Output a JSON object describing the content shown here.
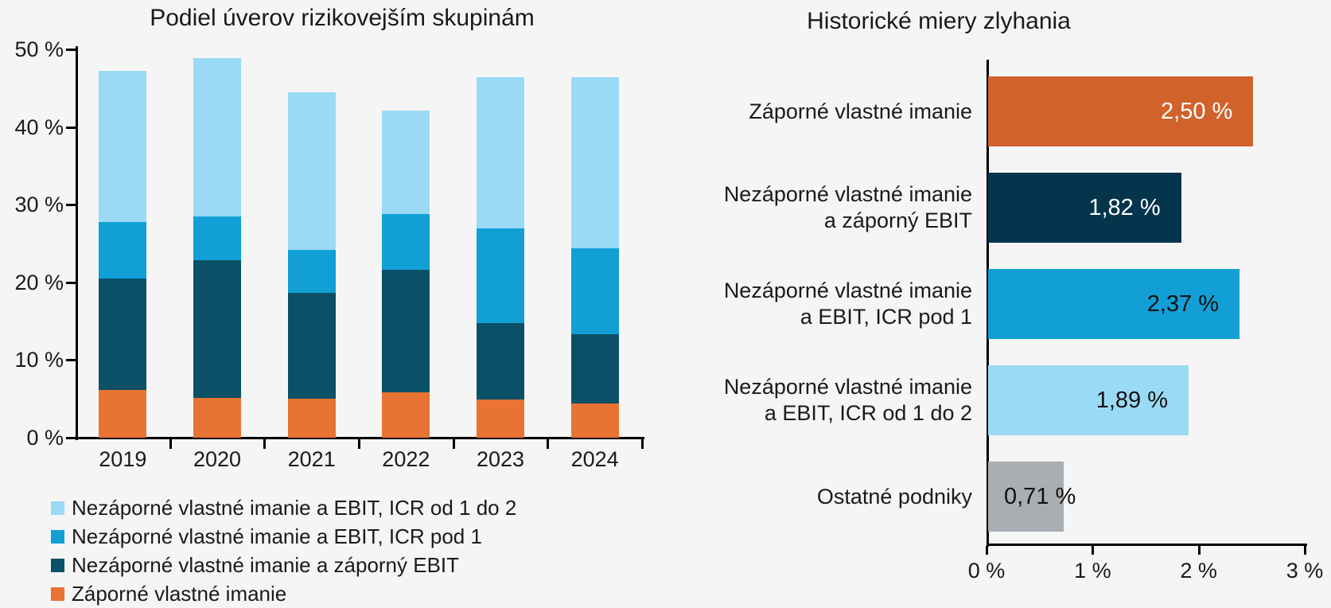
{
  "background": "#F5F5F6",
  "chart_data": [
    {
      "type": "bar",
      "stacked": true,
      "title": "Podiel úverov rizikovejším skupinám",
      "categories": [
        "2019",
        "2020",
        "2021",
        "2022",
        "2023",
        "2024"
      ],
      "series": [
        {
          "name": "Záporné vlastné imanie",
          "color": "#E87332",
          "values": [
            6.1,
            5.1,
            5.0,
            5.8,
            4.9,
            4.4
          ]
        },
        {
          "name": "Nezáporné vlastné imanie a záporný EBIT",
          "color": "#0A5067",
          "values": [
            14.4,
            17.7,
            13.6,
            15.8,
            9.9,
            8.9
          ]
        },
        {
          "name": "Nezáporné vlastné imanie a EBIT, ICR pod 1",
          "color": "#129FD6",
          "values": [
            7.3,
            5.7,
            5.6,
            7.2,
            12.1,
            11.1
          ]
        },
        {
          "name": "Nezáporné vlastné imanie a EBIT, ICR od 1 do 2",
          "color": "#9BDAF5",
          "values": [
            19.4,
            20.4,
            20.3,
            13.3,
            19.5,
            22.0
          ]
        }
      ],
      "ylim": [
        0,
        50
      ],
      "y_tick_labels": [
        "0 %",
        "10 %",
        "20 %",
        "30 %",
        "40 %",
        "50 %"
      ],
      "grid": false,
      "legend_position": "bottom-left",
      "legend": [
        {
          "label": "Nezáporné vlastné imanie a EBIT, ICR od 1 do 2",
          "color": "#9BDAF5"
        },
        {
          "label": "Nezáporné vlastné imanie a EBIT, ICR pod 1",
          "color": "#129FD6"
        },
        {
          "label": "Nezáporné vlastné imanie a záporný EBIT",
          "color": "#0A5067"
        },
        {
          "label": "Záporné vlastné imanie",
          "color": "#E87332"
        }
      ]
    },
    {
      "type": "bar",
      "orientation": "horizontal",
      "title": "Historické miery zlyhania",
      "categories": [
        "Záporné vlastné imanie",
        "Nezáporné vlastné imanie a záporný EBIT",
        "Nezáporné vlastné imanie a EBIT, ICR pod 1",
        "Nezáporné vlastné imanie a EBIT, ICR od 1 do 2",
        "Ostatné podniky"
      ],
      "category_lines": [
        [
          "Záporné vlastné imanie"
        ],
        [
          "Nezáporné vlastné imanie",
          "a záporný EBIT"
        ],
        [
          "Nezáporné vlastné imanie",
          "a EBIT, ICR pod 1"
        ],
        [
          "Nezáporné vlastné imanie",
          "a EBIT, ICR od 1 do 2"
        ],
        [
          "Ostatné podniky"
        ]
      ],
      "values": [
        2.5,
        1.82,
        2.37,
        1.89,
        0.71
      ],
      "value_labels": [
        "2,50 %",
        "1,82 %",
        "2,37 %",
        "1,89 %",
        "0,71 %"
      ],
      "colors": [
        "#D2622B",
        "#05344D",
        "#129FD6",
        "#9BDAF5",
        "#A8AEB2"
      ],
      "value_label_colors": [
        "#FFFFFF",
        "#FFFFFF",
        "#111111",
        "#111111",
        "#111111"
      ],
      "value_label_inside": [
        true,
        true,
        true,
        true,
        false
      ],
      "xlim": [
        0,
        3
      ],
      "x_tick_labels": [
        "0 %",
        "1 %",
        "2 %",
        "3 %"
      ],
      "grid": false
    }
  ]
}
